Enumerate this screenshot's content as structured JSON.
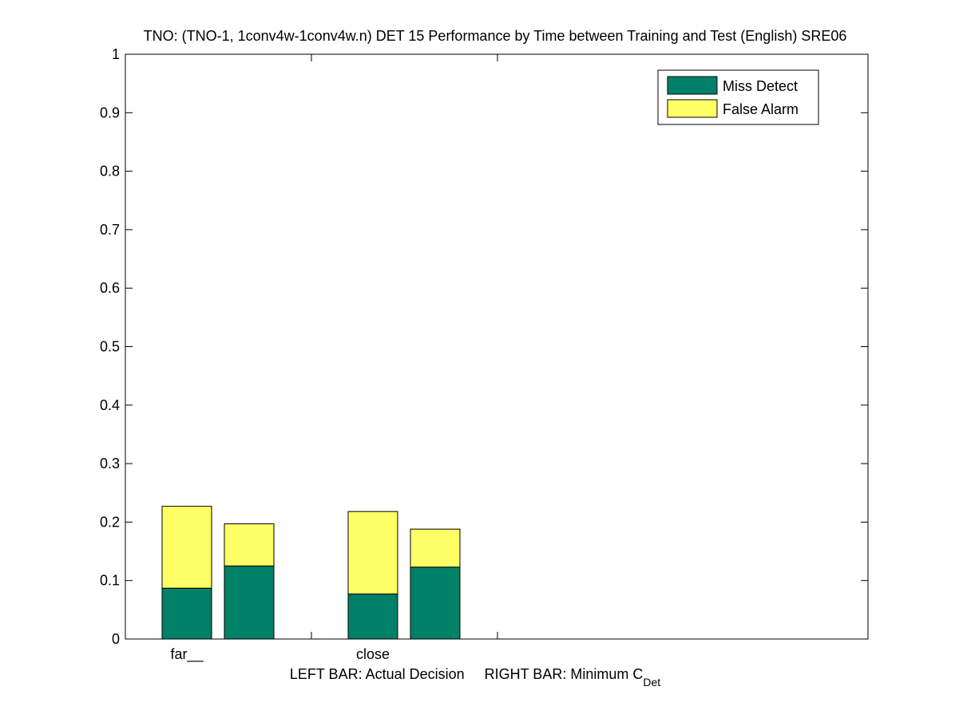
{
  "chart_data": {
    "type": "bar",
    "stacked": true,
    "title": "TNO: (TNO-1, 1conv4w-1conv4w.n) DET 15 Performance by Time between Training and Test (English) SRE06",
    "categories": [
      "far__",
      "close"
    ],
    "bar_roles": [
      "Actual Decision",
      "Minimum C_Det"
    ],
    "xlabel": {
      "main": "LEFT BAR: Actual Decision     RIGHT BAR: Minimum C",
      "subscript": "Det"
    },
    "ylim": [
      0,
      1
    ],
    "yticks": [
      "0",
      "0.1",
      "0.2",
      "0.3",
      "0.4",
      "0.5",
      "0.6",
      "0.7",
      "0.8",
      "0.9",
      "1"
    ],
    "grid": false,
    "legend_position": "top-right",
    "series": [
      {
        "name": "Miss Detect",
        "color": "#008066",
        "values": [
          [
            0.087,
            0.125
          ],
          [
            0.077,
            0.123
          ]
        ]
      },
      {
        "name": "False Alarm",
        "color": "#ffff66",
        "values": [
          [
            0.14,
            0.072
          ],
          [
            0.141,
            0.065
          ]
        ]
      }
    ]
  }
}
